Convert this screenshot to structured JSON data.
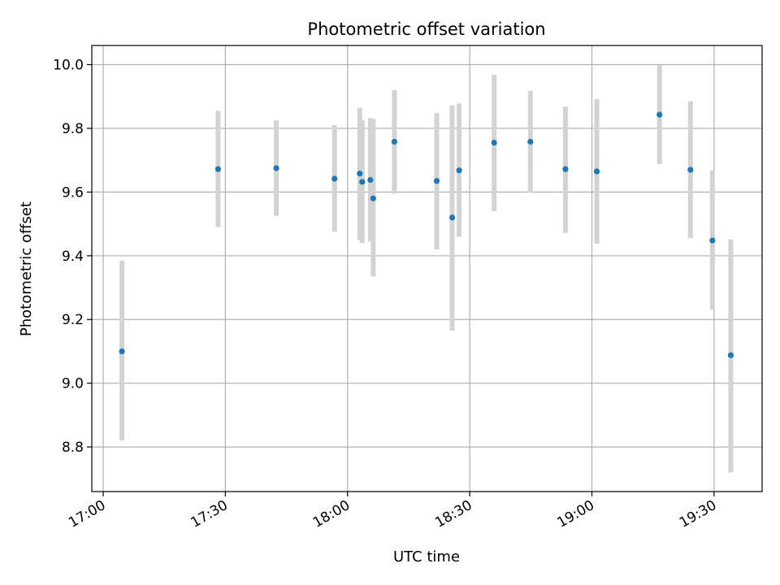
{
  "chart_data": {
    "type": "scatter",
    "title": "Photometric offset variation",
    "xlabel": "UTC time",
    "ylabel": "Photometric offset",
    "xlim": [
      "16:57:12",
      "19:41:48"
    ],
    "ylim": [
      8.66,
      10.06
    ],
    "grid": true,
    "legend": "none",
    "x_ticks": [
      "17:00",
      "17:30",
      "18:00",
      "18:30",
      "19:00",
      "19:30"
    ],
    "y_ticks": [
      "8.8",
      "9.0",
      "9.2",
      "9.4",
      "9.6",
      "9.8",
      "10.0"
    ],
    "colors": {
      "point": "#1f77b4",
      "errorbar": "#d3d3d3",
      "grid": "#b0b0b0"
    },
    "points": [
      {
        "x": "17:04:36",
        "y": 9.1,
        "ylow": 8.82,
        "yhigh": 9.385
      },
      {
        "x": "17:28:12",
        "y": 9.672,
        "ylow": 9.49,
        "yhigh": 9.855
      },
      {
        "x": "17:42:30",
        "y": 9.675,
        "ylow": 9.525,
        "yhigh": 9.825
      },
      {
        "x": "17:56:48",
        "y": 9.642,
        "ylow": 9.475,
        "yhigh": 9.81
      },
      {
        "x": "18:03:00",
        "y": 9.658,
        "ylow": 9.45,
        "yhigh": 9.865
      },
      {
        "x": "18:03:36",
        "y": 9.632,
        "ylow": 9.44,
        "yhigh": 9.825
      },
      {
        "x": "18:05:36",
        "y": 9.638,
        "ylow": 9.445,
        "yhigh": 9.832
      },
      {
        "x": "18:06:18",
        "y": 9.58,
        "ylow": 9.335,
        "yhigh": 9.83
      },
      {
        "x": "18:11:30",
        "y": 9.758,
        "ylow": 9.595,
        "yhigh": 9.92
      },
      {
        "x": "18:21:54",
        "y": 9.635,
        "ylow": 9.42,
        "yhigh": 9.848
      },
      {
        "x": "18:25:42",
        "y": 9.52,
        "ylow": 9.165,
        "yhigh": 9.872
      },
      {
        "x": "18:27:24",
        "y": 9.668,
        "ylow": 9.46,
        "yhigh": 9.878
      },
      {
        "x": "18:36:00",
        "y": 9.755,
        "ylow": 9.54,
        "yhigh": 9.968
      },
      {
        "x": "18:44:54",
        "y": 9.758,
        "ylow": 9.598,
        "yhigh": 9.918
      },
      {
        "x": "18:53:30",
        "y": 9.672,
        "ylow": 9.472,
        "yhigh": 9.868
      },
      {
        "x": "19:01:12",
        "y": 9.665,
        "ylow": 9.438,
        "yhigh": 9.892
      },
      {
        "x": "19:16:36",
        "y": 9.843,
        "ylow": 9.688,
        "yhigh": 9.998
      },
      {
        "x": "19:24:12",
        "y": 9.67,
        "ylow": 9.455,
        "yhigh": 9.885
      },
      {
        "x": "19:29:36",
        "y": 9.448,
        "ylow": 9.23,
        "yhigh": 9.668
      },
      {
        "x": "19:34:06",
        "y": 9.088,
        "ylow": 8.72,
        "yhigh": 9.452
      }
    ]
  }
}
